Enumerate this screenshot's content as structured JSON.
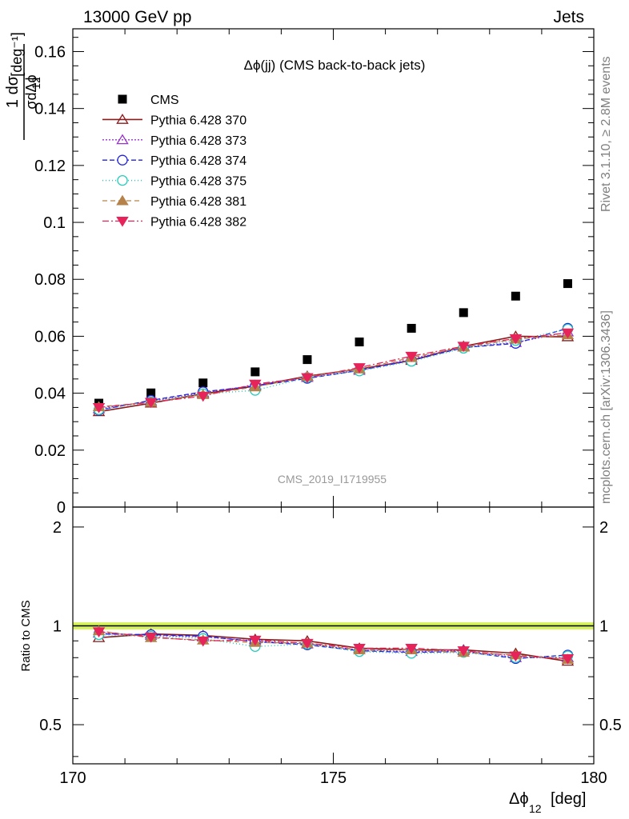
{
  "header": {
    "energy_label": "13000 GeV pp",
    "process_label": "Jets"
  },
  "side_labels": {
    "rivet": "Rivet 3.1.10, ≥ 2.8M events",
    "mcplots": "mcplots.cern.ch [arXiv:1306.3436]"
  },
  "analysis_id": "CMS_2019_I1719955",
  "colors": {
    "cms": "#000000",
    "p370": "#8b1a1a",
    "p373": "#9933cc",
    "p374": "#2222dd",
    "p375": "#22ccbb",
    "p381": "#b5834a",
    "p382": "#e6245a",
    "band": "#d6f25c",
    "refline": "#228b22"
  },
  "chart_data": [
    {
      "type": "scatter",
      "title": "Δϕ(jj) (CMS back-to-back jets)",
      "ylabel_top": "1 dσ",
      "ylabel_bottom": "σdΔϕ",
      "ylabel_sub": "12",
      "ylabel_unit": "[deg⁻¹]",
      "xlim": [
        170,
        180
      ],
      "ylim": [
        0,
        0.168
      ],
      "yticks": [
        "0",
        "0.02",
        "0.04",
        "0.06",
        "0.08",
        "0.1",
        "0.12",
        "0.14",
        "0.16"
      ],
      "x": [
        170.5,
        171.5,
        172.5,
        173.5,
        174.5,
        175.5,
        176.5,
        177.5,
        178.5,
        179.5
      ],
      "series": [
        {
          "name": "CMS",
          "style": "data",
          "values": [
            0.0365,
            0.0401,
            0.0436,
            0.0475,
            0.0518,
            0.058,
            0.0628,
            0.0683,
            0.0741,
            0.0785
          ]
        },
        {
          "name": "Pythia 6.428 370",
          "style": "p370",
          "values": [
            0.0335,
            0.0365,
            0.0398,
            0.0425,
            0.046,
            0.0485,
            0.0515,
            0.0565,
            0.06,
            0.0598
          ]
        },
        {
          "name": "Pythia 6.428 373",
          "style": "p373",
          "values": [
            0.0345,
            0.0372,
            0.0402,
            0.0428,
            0.0455,
            0.048,
            0.052,
            0.0562,
            0.0578,
            0.0615
          ]
        },
        {
          "name": "Pythia 6.428 374",
          "style": "p374",
          "values": [
            0.034,
            0.0375,
            0.0405,
            0.0425,
            0.0452,
            0.048,
            0.0515,
            0.056,
            0.0575,
            0.0628
          ]
        },
        {
          "name": "Pythia 6.428 375",
          "style": "p375",
          "values": [
            0.0342,
            0.037,
            0.0398,
            0.041,
            0.0455,
            0.0478,
            0.0512,
            0.0558,
            0.0585,
            0.0625
          ]
        },
        {
          "name": "Pythia 6.428 381",
          "style": "p381",
          "values": [
            0.0352,
            0.0368,
            0.0395,
            0.0422,
            0.0458,
            0.0485,
            0.0525,
            0.0562,
            0.059,
            0.0605
          ]
        },
        {
          "name": "Pythia 6.428 382",
          "style": "p382",
          "values": [
            0.035,
            0.0368,
            0.039,
            0.0432,
            0.0455,
            0.049,
            0.053,
            0.0565,
            0.0592,
            0.0612
          ]
        }
      ]
    },
    {
      "type": "scatter",
      "ylabel": "Ratio to CMS",
      "xlabel": "Δϕ",
      "xlabel_sub": "12",
      "xlabel_unit": "[deg]",
      "xlim": [
        170,
        180
      ],
      "ylim": [
        0.38,
        2.3
      ],
      "log_scale_y": true,
      "yticks": [
        0.5,
        1,
        2
      ],
      "ytick_labels": [
        "0.5",
        "1",
        "2"
      ],
      "xticks": [
        170,
        175,
        180
      ],
      "xtick_labels": [
        "170",
        "175",
        "180"
      ],
      "band": [
        0.975,
        1.025
      ],
      "x": [
        170.5,
        171.5,
        172.5,
        173.5,
        174.5,
        175.5,
        176.5,
        177.5,
        178.5,
        179.5
      ],
      "series": [
        {
          "name": "Pythia 6.428 370",
          "style": "p370",
          "values": [
            0.92,
            0.945,
            0.935,
            0.91,
            0.9,
            0.855,
            0.845,
            0.845,
            0.825,
            0.78
          ]
        },
        {
          "name": "Pythia 6.428 373",
          "style": "p373",
          "values": [
            0.95,
            0.935,
            0.925,
            0.9,
            0.88,
            0.845,
            0.835,
            0.84,
            0.8,
            0.8
          ]
        },
        {
          "name": "Pythia 6.428 374",
          "style": "p374",
          "values": [
            0.945,
            0.94,
            0.93,
            0.895,
            0.875,
            0.84,
            0.83,
            0.835,
            0.795,
            0.815
          ]
        },
        {
          "name": "Pythia 6.428 375",
          "style": "p375",
          "values": [
            0.94,
            0.93,
            0.915,
            0.865,
            0.88,
            0.835,
            0.825,
            0.83,
            0.8,
            0.81
          ]
        },
        {
          "name": "Pythia 6.428 381",
          "style": "p381",
          "values": [
            0.965,
            0.92,
            0.905,
            0.89,
            0.885,
            0.845,
            0.845,
            0.83,
            0.815,
            0.79
          ]
        },
        {
          "name": "Pythia 6.428 382",
          "style": "p382",
          "values": [
            0.96,
            0.925,
            0.9,
            0.905,
            0.885,
            0.855,
            0.855,
            0.84,
            0.81,
            0.795
          ]
        }
      ]
    }
  ]
}
